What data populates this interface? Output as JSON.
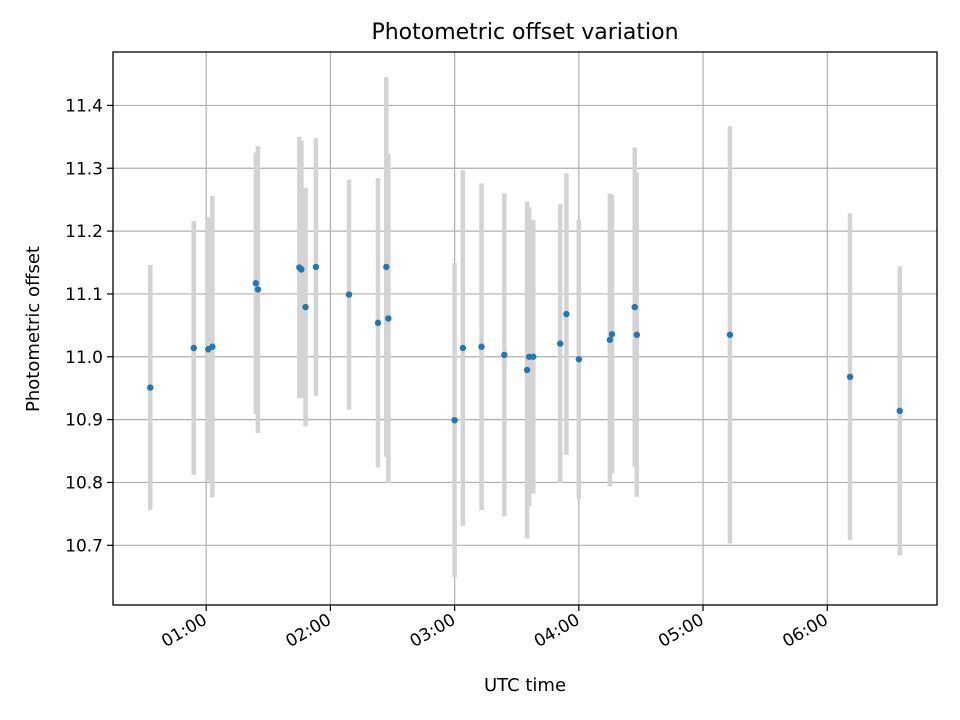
{
  "chart_data": {
    "type": "scatter",
    "title": "Photometric offset variation",
    "xlabel": "UTC time",
    "ylabel": "Photometric offset",
    "x_axis_type": "time",
    "xlim": [
      "00:15",
      "06:53"
    ],
    "ylim": [
      10.605,
      11.485
    ],
    "x_ticks": [
      "01:00",
      "02:00",
      "03:00",
      "04:00",
      "05:00",
      "06:00"
    ],
    "y_ticks": [
      "10.7",
      "10.8",
      "10.9",
      "11.0",
      "11.1",
      "11.2",
      "11.3",
      "11.4"
    ],
    "grid": true,
    "legend": "none",
    "colors": {
      "point": "#1f77b4",
      "errorbar": "#d3d3d3",
      "grid": "#b0b0b0"
    },
    "points": [
      {
        "x": "00:33",
        "y": 10.951,
        "err": 0.195
      },
      {
        "x": "00:54",
        "y": 11.014,
        "err": 0.202
      },
      {
        "x": "01:01",
        "y": 11.012,
        "err": 0.21
      },
      {
        "x": "01:03",
        "y": 11.016,
        "err": 0.24
      },
      {
        "x": "01:24",
        "y": 11.117,
        "err": 0.208
      },
      {
        "x": "01:25",
        "y": 11.107,
        "err": 0.228
      },
      {
        "x": "01:45",
        "y": 11.142,
        "err": 0.208
      },
      {
        "x": "01:46",
        "y": 11.139,
        "err": 0.205
      },
      {
        "x": "01:48",
        "y": 11.079,
        "err": 0.19
      },
      {
        "x": "01:53",
        "y": 11.143,
        "err": 0.205
      },
      {
        "x": "02:09",
        "y": 11.099,
        "err": 0.183
      },
      {
        "x": "02:23",
        "y": 11.054,
        "err": 0.23
      },
      {
        "x": "02:27",
        "y": 11.143,
        "err": 0.302
      },
      {
        "x": "02:28",
        "y": 11.061,
        "err": 0.262
      },
      {
        "x": "03:00",
        "y": 10.899,
        "err": 0.25
      },
      {
        "x": "03:04",
        "y": 11.014,
        "err": 0.283
      },
      {
        "x": "03:13",
        "y": 11.016,
        "err": 0.26
      },
      {
        "x": "03:24",
        "y": 11.003,
        "err": 0.257
      },
      {
        "x": "03:35",
        "y": 10.979,
        "err": 0.268
      },
      {
        "x": "03:36",
        "y": 11.0,
        "err": 0.238
      },
      {
        "x": "03:38",
        "y": 11.0,
        "err": 0.218
      },
      {
        "x": "03:51",
        "y": 11.021,
        "err": 0.222
      },
      {
        "x": "03:54",
        "y": 11.068,
        "err": 0.224
      },
      {
        "x": "04:00",
        "y": 10.996,
        "err": 0.222
      },
      {
        "x": "04:15",
        "y": 11.027,
        "err": 0.233
      },
      {
        "x": "04:16",
        "y": 11.036,
        "err": 0.222
      },
      {
        "x": "04:27",
        "y": 11.079,
        "err": 0.254
      },
      {
        "x": "04:28",
        "y": 11.035,
        "err": 0.258
      },
      {
        "x": "05:13",
        "y": 11.035,
        "err": 0.332
      },
      {
        "x": "06:11",
        "y": 10.968,
        "err": 0.26
      },
      {
        "x": "06:35",
        "y": 10.914,
        "err": 0.23
      }
    ]
  }
}
